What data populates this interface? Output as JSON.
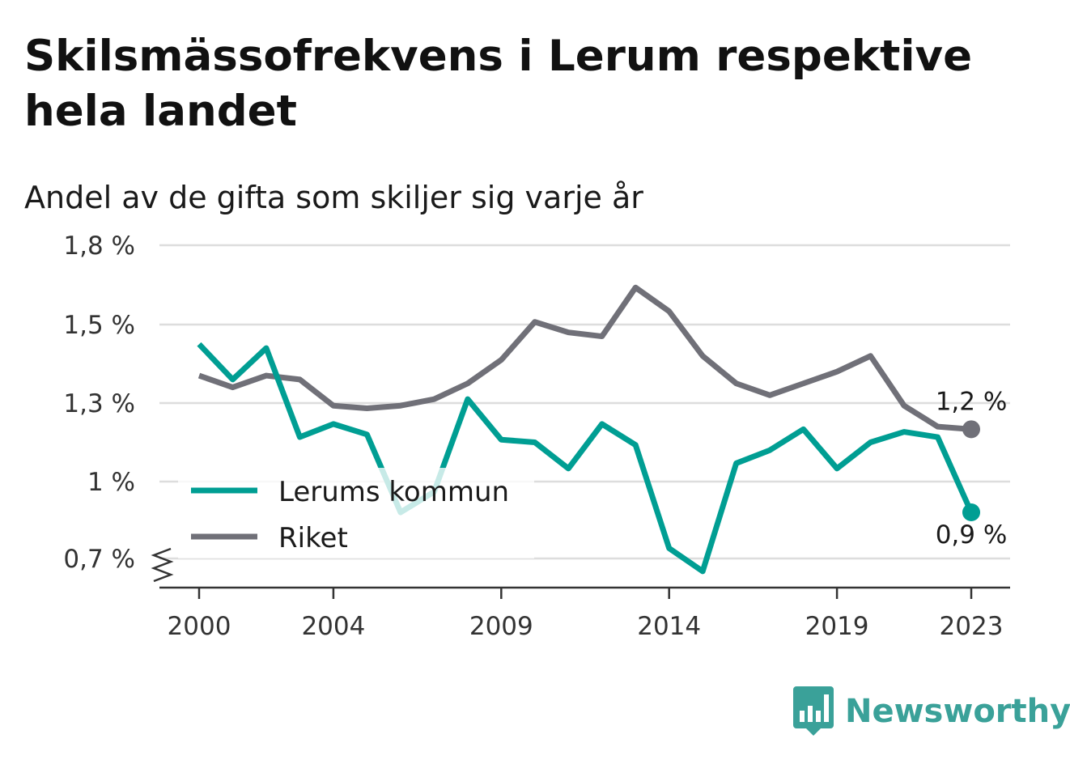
{
  "title": "Skilsmässofrekvens i Lerum respektive hela landet",
  "subtitle": "Andel av de gifta som skiljer sig varje år",
  "brand": "Newsworthy",
  "colors": {
    "lerum": "#009e93",
    "riket": "#707078",
    "grid": "#dddddd",
    "axis": "#333333",
    "brand": "#3aa199"
  },
  "chart_data": {
    "type": "line",
    "x": [
      2000,
      2001,
      2002,
      2003,
      2004,
      2005,
      2006,
      2007,
      2008,
      2009,
      2010,
      2011,
      2012,
      2013,
      2014,
      2015,
      2016,
      2017,
      2018,
      2019,
      2020,
      2021,
      2022,
      2023
    ],
    "x_ticks": [
      2000,
      2004,
      2009,
      2014,
      2019,
      2023
    ],
    "x_tick_labels": [
      "2000",
      "2004",
      "2009",
      "2014",
      "2019",
      "2023"
    ],
    "y_ticks": [
      1.8,
      1.5,
      1.3,
      1.0,
      0.7
    ],
    "y_tick_labels": [
      "1,8 %",
      "1,5 %",
      "1,3 %",
      "1 %",
      "0,7 %"
    ],
    "ylim": [
      0.7,
      1.8
    ],
    "y_axis_broken": true,
    "grid": true,
    "legend_position": "bottom-left",
    "series": [
      {
        "name": "Lerums kommun",
        "color": "#009e93",
        "values": [
          1.45,
          1.36,
          1.44,
          1.17,
          1.22,
          1.18,
          0.88,
          0.96,
          1.31,
          1.16,
          1.15,
          1.05,
          1.22,
          1.14,
          0.74,
          0.65,
          1.07,
          1.12,
          1.2,
          1.05,
          1.15,
          1.19,
          1.17,
          0.88
        ],
        "end_label": "0,9 %"
      },
      {
        "name": "Riket",
        "color": "#707078",
        "values": [
          1.37,
          1.34,
          1.37,
          1.36,
          1.29,
          1.28,
          1.29,
          1.31,
          1.35,
          1.41,
          1.51,
          1.48,
          1.47,
          1.64,
          1.55,
          1.42,
          1.35,
          1.32,
          1.35,
          1.38,
          1.42,
          1.29,
          1.21,
          1.2
        ],
        "end_label": "1,2 %"
      }
    ]
  }
}
